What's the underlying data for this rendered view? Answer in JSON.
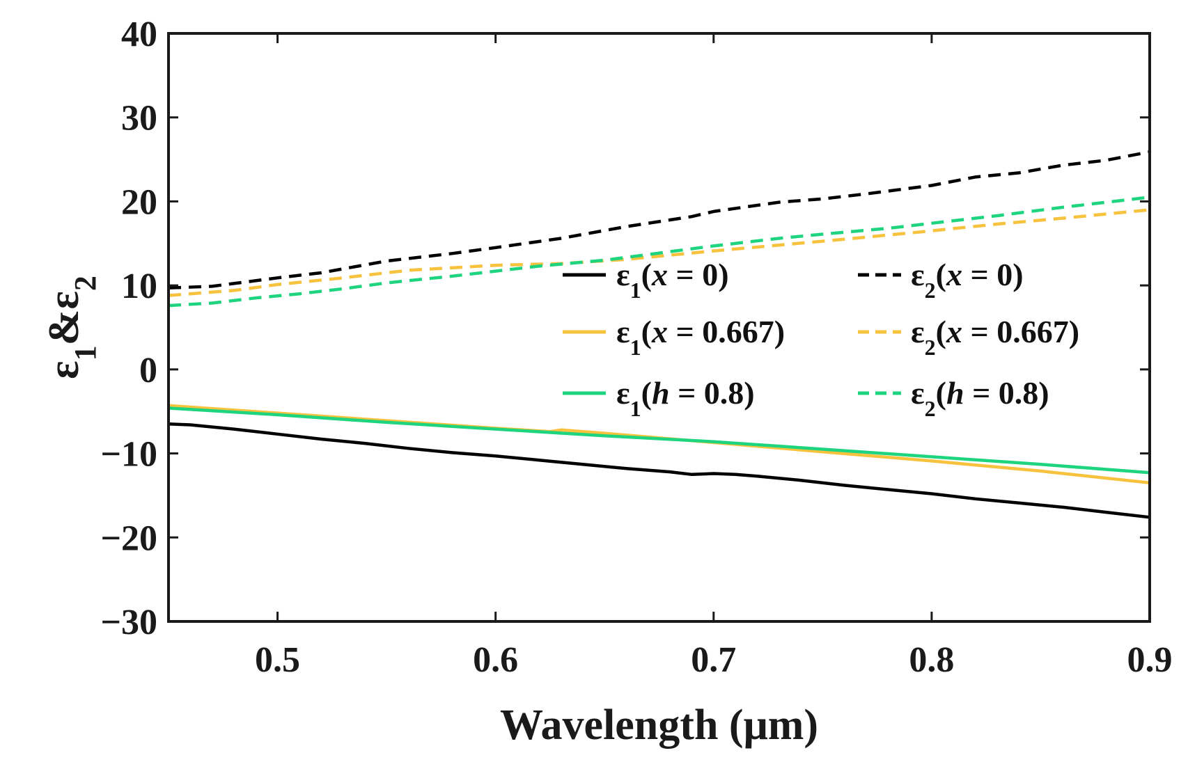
{
  "chart_data": {
    "type": "line",
    "title": "",
    "xlabel": "Wavelength (μm)",
    "ylabel": {
      "base": "ε",
      "sub1": "1",
      "amp": "&",
      "sub2": "2"
    },
    "xlim": [
      0.45,
      0.9
    ],
    "ylim": [
      -30,
      40
    ],
    "xticks": [
      0.5,
      0.6,
      0.7,
      0.8,
      0.9
    ],
    "xtick_labels": [
      "0.5",
      "0.6",
      "0.7",
      "0.8",
      "0.9"
    ],
    "yticks": [
      -30,
      -20,
      -10,
      0,
      10,
      20,
      30,
      40
    ],
    "ytick_labels": [
      "−30",
      "−20",
      "−10",
      "0",
      "10",
      "20",
      "30",
      "40"
    ],
    "grid": false,
    "legend": "center-right",
    "series": [
      {
        "name": "ε1(x = 0)",
        "label": {
          "base": "ε",
          "sub": "1",
          "open": "(",
          "var": "x",
          "rest": " = 0)"
        },
        "color": "#000000",
        "dash": "solid",
        "x": [
          0.45,
          0.46,
          0.48,
          0.5,
          0.52,
          0.54,
          0.56,
          0.58,
          0.6,
          0.62,
          0.64,
          0.66,
          0.68,
          0.69,
          0.7,
          0.71,
          0.72,
          0.74,
          0.76,
          0.78,
          0.8,
          0.82,
          0.84,
          0.86,
          0.88,
          0.9
        ],
        "y": [
          -6.5,
          -6.6,
          -7.1,
          -7.7,
          -8.3,
          -8.8,
          -9.4,
          -9.9,
          -10.3,
          -10.8,
          -11.3,
          -11.8,
          -12.2,
          -12.5,
          -12.4,
          -12.5,
          -12.7,
          -13.2,
          -13.8,
          -14.3,
          -14.8,
          -15.4,
          -15.9,
          -16.4,
          -17.0,
          -17.6
        ]
      },
      {
        "name": "ε1(x = 0.667)",
        "label": {
          "base": "ε",
          "sub": "1",
          "open": "(",
          "var": "x",
          "rest": " = 0.667)"
        },
        "color": "#f7c23e",
        "dash": "solid",
        "x": [
          0.45,
          0.5,
          0.55,
          0.6,
          0.625,
          0.63,
          0.65,
          0.7,
          0.75,
          0.8,
          0.85,
          0.9
        ],
        "y": [
          -4.3,
          -5.2,
          -6.1,
          -7.0,
          -7.4,
          -7.2,
          -7.6,
          -8.7,
          -9.8,
          -10.9,
          -12.1,
          -13.5
        ]
      },
      {
        "name": "ε1(h = 0.8)",
        "label": {
          "base": "ε",
          "sub": "1",
          "open": "(",
          "var": "h",
          "rest": " = 0.8)"
        },
        "color": "#1ed47e",
        "dash": "solid",
        "x": [
          0.45,
          0.5,
          0.55,
          0.6,
          0.65,
          0.7,
          0.75,
          0.8,
          0.85,
          0.9
        ],
        "y": [
          -4.6,
          -5.4,
          -6.3,
          -7.1,
          -7.9,
          -8.6,
          -9.5,
          -10.4,
          -11.3,
          -12.3
        ]
      },
      {
        "name": "ε2(x = 0)",
        "label": {
          "base": "ε",
          "sub": "2",
          "open": "(",
          "var": "x",
          "rest": " = 0)"
        },
        "color": "#000000",
        "dash": "dashed",
        "x": [
          0.45,
          0.47,
          0.5,
          0.52,
          0.55,
          0.58,
          0.6,
          0.63,
          0.66,
          0.69,
          0.7,
          0.73,
          0.75,
          0.77,
          0.8,
          0.82,
          0.84,
          0.86,
          0.88,
          0.9
        ],
        "y": [
          9.7,
          9.9,
          10.9,
          11.5,
          12.9,
          13.8,
          14.5,
          15.6,
          17.0,
          18.2,
          18.8,
          19.9,
          20.3,
          20.9,
          21.9,
          22.9,
          23.4,
          24.3,
          24.9,
          25.9
        ]
      },
      {
        "name": "ε2(x = 0.667)",
        "label": {
          "base": "ε",
          "sub": "2",
          "open": "(",
          "var": "x",
          "rest": " = 0.667)"
        },
        "color": "#f7c23e",
        "dash": "dashed",
        "x": [
          0.45,
          0.48,
          0.5,
          0.53,
          0.56,
          0.6,
          0.63,
          0.66,
          0.7,
          0.73,
          0.76,
          0.8,
          0.83,
          0.86,
          0.9
        ],
        "y": [
          8.8,
          9.4,
          10.1,
          10.9,
          11.8,
          12.4,
          12.6,
          13.1,
          14.1,
          14.8,
          15.5,
          16.5,
          17.3,
          18.0,
          19.0
        ]
      },
      {
        "name": "ε2(h = 0.8)",
        "label": {
          "base": "ε",
          "sub": "2",
          "open": "(",
          "var": "h",
          "rest": " = 0.8)"
        },
        "color": "#1ed47e",
        "dash": "dashed",
        "x": [
          0.45,
          0.47,
          0.49,
          0.51,
          0.53,
          0.55,
          0.58,
          0.6,
          0.62,
          0.65,
          0.7,
          0.73,
          0.75,
          0.78,
          0.8,
          0.83,
          0.86,
          0.9
        ],
        "y": [
          7.6,
          7.9,
          8.5,
          9.0,
          9.6,
          10.3,
          11.1,
          11.7,
          12.3,
          13.0,
          14.7,
          15.6,
          16.1,
          16.8,
          17.4,
          18.3,
          19.3,
          20.5
        ]
      }
    ]
  }
}
